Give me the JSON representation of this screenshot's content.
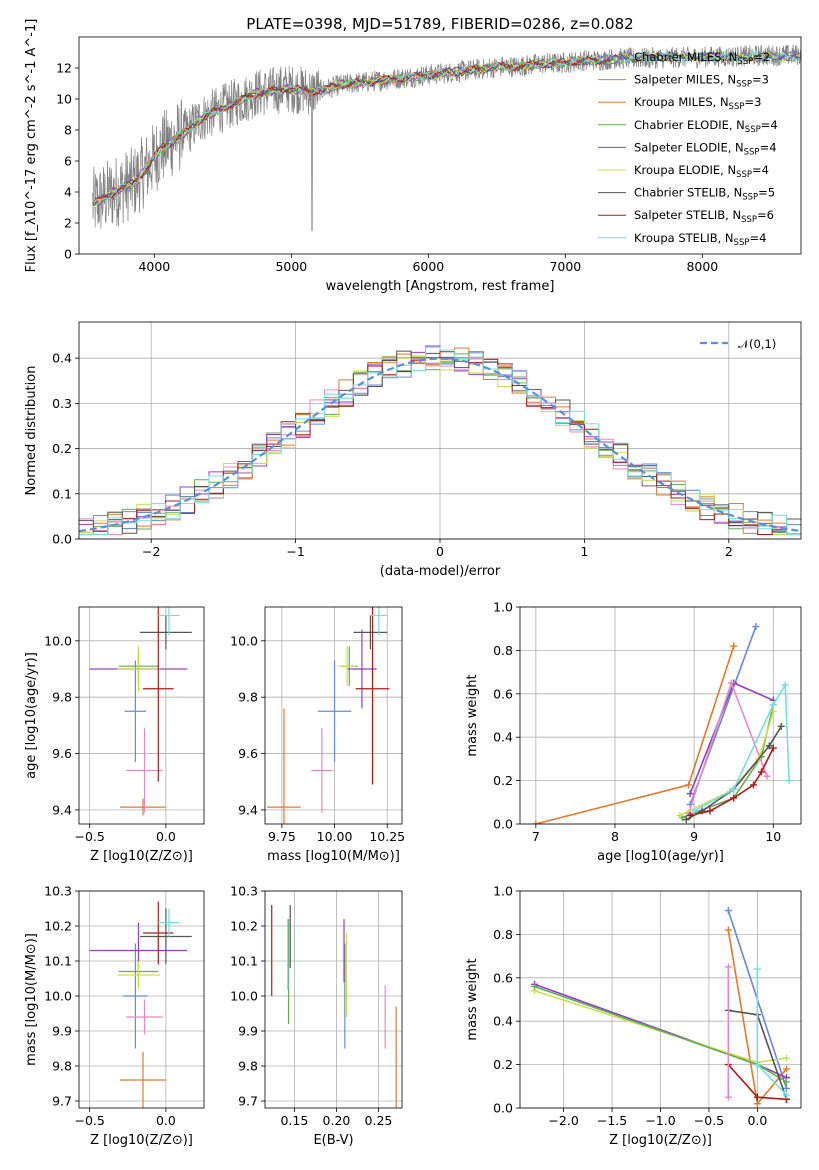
{
  "figure": {
    "title": "PLATE=0398, MJD=51789, FIBERID=0286, z=0.082"
  },
  "colors": {
    "blue": "#6688dd",
    "orange": "#e07a2c",
    "green": "#66aa55",
    "purple": "#8e44c0",
    "pink": "#e58ac4",
    "yellowgreen": "#ccdd55",
    "gray": "#555555",
    "red": "#aa1c1c",
    "cyan": "#77dddd",
    "data_gray": "#808080"
  },
  "chart_data": [
    {
      "id": "spectrum",
      "type": "line",
      "title": "PLATE=0398, MJD=51789, FIBERID=0286, z=0.082",
      "xlabel": "wavelength [Angstrom, rest frame]",
      "ylabel": "Flux [f_λ10^-17 erg cm^-2 s^-1 A^-1]",
      "xlim": [
        3450,
        8720
      ],
      "ylim": [
        0,
        14
      ],
      "xticks": [
        "4000",
        "5000",
        "6000",
        "7000",
        "8000"
      ],
      "yticks": [
        "0",
        "2",
        "4",
        "6",
        "8",
        "10",
        "12"
      ],
      "grid": false,
      "legend_position": "right",
      "legend": [
        {
          "label": "Chabrier MILES, N_SSP=2",
          "color": "#6688dd"
        },
        {
          "label": "Salpeter MILES, N_SSP=3",
          "color": "#e07a2c"
        },
        {
          "label": "Kroupa MILES, N_SSP=3",
          "color": "#e07a2c"
        },
        {
          "label": "Chabrier ELODIE, N_SSP=4",
          "color": "#66aa55"
        },
        {
          "label": "Salpeter ELODIE, N_SSP=4",
          "color": "#8e44c0"
        },
        {
          "label": "Kroupa ELODIE, N_SSP=4",
          "color": "#ccdd55"
        },
        {
          "label": "Chabrier STELIB, N_SSP=5",
          "color": "#555555"
        },
        {
          "label": "Salpeter STELIB, N_SSP=6",
          "color": "#aa1c1c"
        },
        {
          "label": "Kroupa STELIB, N_SSP=4",
          "color": "#77dddd"
        }
      ],
      "model_curve": {
        "x": [
          3550,
          3650,
          3750,
          3850,
          3950,
          4050,
          4150,
          4250,
          4350,
          4450,
          4550,
          4650,
          4750,
          4850,
          4950,
          5050,
          5150,
          5250,
          5350,
          5450,
          5550,
          5650,
          5750,
          5850,
          5950,
          6050,
          6150,
          6250,
          6350,
          6450,
          6550,
          6650,
          6750,
          6850,
          6950,
          7050,
          7150,
          7250,
          7350,
          7450
        ],
        "y": [
          3.2,
          3.7,
          4.2,
          4.6,
          5.6,
          6.8,
          7.4,
          8.0,
          8.8,
          9.2,
          9.6,
          10.0,
          10.4,
          10.5,
          10.7,
          10.6,
          10.5,
          10.6,
          10.9,
          11.0,
          11.1,
          11.2,
          11.3,
          11.4,
          11.5,
          11.6,
          11.7,
          11.8,
          11.9,
          12.0,
          12.1,
          12.1,
          12.2,
          12.3,
          12.3,
          12.4,
          12.5,
          12.5,
          12.6,
          12.6
        ]
      },
      "data_curve_xrange": [
        3500,
        8720
      ]
    },
    {
      "id": "residuals",
      "type": "line",
      "xlabel": "(data-model)/error",
      "ylabel": "Normed distribution",
      "xlim": [
        -2.5,
        2.5
      ],
      "ylim": [
        0,
        0.48
      ],
      "xticks": [
        "−2",
        "−1",
        "0",
        "1",
        "2"
      ],
      "yticks": [
        "0.0",
        "0.1",
        "0.2",
        "0.3",
        "0.4"
      ],
      "grid": true,
      "legend_position": "top-right",
      "reference": {
        "label": "𝒩(0,1)",
        "mu": 0,
        "sigma": 1,
        "color": "#5b8fd8"
      },
      "bin_width": 0.1
    },
    {
      "id": "age_vs_Z",
      "type": "scatter",
      "xlabel": "Z [log10(Z/Z⊙)]",
      "ylabel": "age [log10(age/yr)]",
      "xlim": [
        -0.57,
        0.25
      ],
      "ylim": [
        9.35,
        10.12
      ],
      "xticks": [
        "−0.5",
        "0.0"
      ],
      "yticks": [
        "9.4",
        "9.6",
        "9.8",
        "10.0"
      ],
      "grid": true,
      "points": [
        {
          "x": -0.2,
          "xerr": 0.07,
          "y": 9.75,
          "yerr": 0.18,
          "color": "#6688dd"
        },
        {
          "x": -0.15,
          "xerr": 0.15,
          "y": 9.41,
          "yerr": 0.03,
          "color": "#e07a2c"
        },
        {
          "x": -0.18,
          "xerr": 0.13,
          "y": 9.91,
          "yerr": 0.06,
          "color": "#66aa55"
        },
        {
          "x": -0.18,
          "xerr": 0.32,
          "y": 9.9,
          "yerr": 0.06,
          "color": "#8e44c0"
        },
        {
          "x": -0.14,
          "xerr": 0.12,
          "y": 9.54,
          "yerr": 0.15,
          "color": "#e58ac4"
        },
        {
          "x": -0.18,
          "xerr": 0.14,
          "y": 9.9,
          "yerr": 0.08,
          "color": "#ccdd55"
        },
        {
          "x": 0.0,
          "xerr": 0.17,
          "y": 10.03,
          "yerr": 0.06,
          "color": "#555555"
        },
        {
          "x": -0.05,
          "xerr": 0.1,
          "y": 9.83,
          "yerr": 0.33,
          "color": "#aa1c1c"
        },
        {
          "x": 0.02,
          "xerr": 0.07,
          "y": 10.09,
          "yerr": 0.07,
          "color": "#77dddd"
        }
      ]
    },
    {
      "id": "age_vs_mass",
      "type": "scatter",
      "xlabel": "mass [log10(M/M⊙)]",
      "xlim": [
        9.67,
        10.32
      ],
      "ylim": [
        9.35,
        10.12
      ],
      "xticks": [
        "9.75",
        "10.00",
        "10.25"
      ],
      "yticks": [
        "9.4",
        "9.6",
        "9.8",
        "10.0"
      ],
      "grid": true,
      "points": [
        {
          "x": 10.0,
          "xerr": 0.08,
          "y": 9.75,
          "yerr": 0.18,
          "color": "#6688dd"
        },
        {
          "x": 9.76,
          "xerr": 0.08,
          "y": 9.41,
          "yerr": 0.35,
          "color": "#e07a2c"
        },
        {
          "x": 10.07,
          "xerr": 0.04,
          "y": 9.91,
          "yerr": 0.07,
          "color": "#66aa55"
        },
        {
          "x": 10.13,
          "xerr": 0.07,
          "y": 9.9,
          "yerr": 0.14,
          "color": "#8e44c0"
        },
        {
          "x": 9.94,
          "xerr": 0.05,
          "y": 9.54,
          "yerr": 0.15,
          "color": "#e58ac4"
        },
        {
          "x": 10.06,
          "xerr": 0.04,
          "y": 9.91,
          "yerr": 0.07,
          "color": "#ccdd55"
        },
        {
          "x": 10.17,
          "xerr": 0.08,
          "y": 10.03,
          "yerr": 0.06,
          "color": "#555555"
        },
        {
          "x": 10.18,
          "xerr": 0.08,
          "y": 9.83,
          "yerr": 0.34,
          "color": "#aa1c1c"
        },
        {
          "x": 10.21,
          "xerr": 0.04,
          "y": 10.09,
          "yerr": 0.07,
          "color": "#77dddd"
        }
      ]
    },
    {
      "id": "weight_vs_age",
      "type": "line",
      "xlabel": "age [log10(age/yr)]",
      "ylabel": "mass weight",
      "xlim": [
        6.8,
        10.35
      ],
      "ylim": [
        0,
        1.0
      ],
      "xticks": [
        "7",
        "8",
        "9",
        "10"
      ],
      "yticks": [
        "0.0",
        "0.2",
        "0.4",
        "0.6",
        "0.8",
        "1.0"
      ],
      "grid": true,
      "series": [
        {
          "color": "#6688dd",
          "x": [
            8.95,
            9.78
          ],
          "y": [
            0.09,
            0.91
          ]
        },
        {
          "color": "#e07a2c",
          "x": [
            7.0,
            8.93,
            9.5
          ],
          "y": [
            0.0,
            0.18,
            0.82
          ]
        },
        {
          "color": "#8e44c0",
          "x": [
            8.95,
            9.5,
            10.0
          ],
          "y": [
            0.14,
            0.65,
            0.57
          ]
        },
        {
          "color": "#e58ac4",
          "x": [
            8.93,
            9.47,
            9.92
          ],
          "y": [
            0.05,
            0.65,
            0.22
          ]
        },
        {
          "color": "#66aa55",
          "x": [
            8.85,
            9.5,
            9.85,
            10.0
          ],
          "y": [
            0.03,
            0.12,
            0.31,
            0.55
          ]
        },
        {
          "color": "#ccdd55",
          "x": [
            8.82,
            9.45,
            9.82,
            10.0
          ],
          "y": [
            0.04,
            0.15,
            0.3,
            0.52
          ]
        },
        {
          "color": "#555555",
          "x": [
            8.9,
            9.1,
            9.5,
            9.95,
            10.1
          ],
          "y": [
            0.02,
            0.06,
            0.16,
            0.36,
            0.45
          ]
        },
        {
          "color": "#aa1c1c",
          "x": [
            8.95,
            9.2,
            9.5,
            9.75,
            9.85,
            10.0
          ],
          "y": [
            0.04,
            0.06,
            0.12,
            0.18,
            0.24,
            0.35
          ]
        },
        {
          "color": "#77dddd",
          "x": [
            9.0,
            9.5,
            10.0,
            10.15,
            10.2
          ],
          "y": [
            0.06,
            0.16,
            0.55,
            0.64,
            0.2
          ]
        }
      ]
    },
    {
      "id": "mass_vs_Z",
      "type": "scatter",
      "xlabel": "Z [log10(Z/Z⊙)]",
      "ylabel": "mass [log10(M/M⊙)]",
      "xlim": [
        -0.57,
        0.25
      ],
      "ylim": [
        9.68,
        10.3
      ],
      "xticks": [
        "−0.5",
        "0.0"
      ],
      "yticks": [
        "9.7",
        "9.8",
        "9.9",
        "10.0",
        "10.1",
        "10.2",
        "10.3"
      ],
      "grid": true,
      "points": [
        {
          "x": -0.2,
          "xerr": 0.08,
          "y": 10.0,
          "yerr": 0.15,
          "color": "#6688dd"
        },
        {
          "x": -0.15,
          "xerr": 0.15,
          "y": 9.76,
          "yerr": 0.08,
          "color": "#e07a2c"
        },
        {
          "x": -0.18,
          "xerr": 0.13,
          "y": 10.07,
          "yerr": 0.04,
          "color": "#66aa55"
        },
        {
          "x": -0.18,
          "xerr": 0.32,
          "y": 10.13,
          "yerr": 0.08,
          "color": "#8e44c0"
        },
        {
          "x": -0.14,
          "xerr": 0.12,
          "y": 9.94,
          "yerr": 0.05,
          "color": "#e58ac4"
        },
        {
          "x": -0.18,
          "xerr": 0.14,
          "y": 10.06,
          "yerr": 0.04,
          "color": "#ccdd55"
        },
        {
          "x": 0.0,
          "xerr": 0.17,
          "y": 10.17,
          "yerr": 0.08,
          "color": "#555555"
        },
        {
          "x": -0.05,
          "xerr": 0.1,
          "y": 10.18,
          "yerr": 0.09,
          "color": "#aa1c1c"
        },
        {
          "x": 0.02,
          "xerr": 0.07,
          "y": 10.21,
          "yerr": 0.04,
          "color": "#77dddd"
        }
      ]
    },
    {
      "id": "mass_vs_EBV",
      "type": "scatter",
      "xlabel": "E(B-V)",
      "xlim": [
        0.115,
        0.278
      ],
      "ylim": [
        9.68,
        10.3
      ],
      "xticks": [
        "0.15",
        "0.20",
        "0.25"
      ],
      "yticks": [
        "9.7",
        "9.8",
        "9.9",
        "10.0",
        "10.1",
        "10.2",
        "10.3"
      ],
      "grid": true,
      "points": [
        {
          "x": 0.21,
          "y": 10.0,
          "yerr": 0.15,
          "color": "#6688dd"
        },
        {
          "x": 0.271,
          "y": 9.76,
          "yerr": 0.21,
          "color": "#e07a2c"
        },
        {
          "x": 0.143,
          "y": 10.07,
          "yerr": 0.15,
          "color": "#66aa55"
        },
        {
          "x": 0.209,
          "y": 10.13,
          "yerr": 0.09,
          "color": "#8e44c0"
        },
        {
          "x": 0.258,
          "y": 9.94,
          "yerr": 0.09,
          "color": "#e58ac4"
        },
        {
          "x": 0.212,
          "y": 10.06,
          "yerr": 0.12,
          "color": "#ccdd55"
        },
        {
          "x": 0.145,
          "y": 10.17,
          "yerr": 0.09,
          "color": "#555555"
        },
        {
          "x": 0.123,
          "y": 10.13,
          "yerr": 0.13,
          "color": "#aa1c1c"
        },
        {
          "x": 0.142,
          "y": 10.12,
          "yerr": 0.1,
          "color": "#77dddd"
        }
      ]
    },
    {
      "id": "weight_vs_Z",
      "type": "line",
      "xlabel": "Z [log10(Z/Z⊙)]",
      "ylabel": "mass weight",
      "xlim": [
        -2.45,
        0.45
      ],
      "ylim": [
        0,
        1.0
      ],
      "xticks": [
        "−2.0",
        "−1.5",
        "−1.0",
        "−0.5",
        "0.0"
      ],
      "yticks": [
        "0.0",
        "0.2",
        "0.4",
        "0.6",
        "0.8",
        "1.0"
      ],
      "grid": true,
      "series": [
        {
          "color": "#6688dd",
          "x": [
            -0.3,
            0.3
          ],
          "y": [
            0.91,
            0.09
          ]
        },
        {
          "color": "#e07a2c",
          "x": [
            -0.3,
            0.0,
            0.3
          ],
          "y": [
            0.82,
            0.02,
            0.18
          ]
        },
        {
          "color": "#8e44c0",
          "x": [
            -2.3,
            0.0,
            0.3
          ],
          "y": [
            0.57,
            0.2,
            0.14
          ]
        },
        {
          "color": "#ccdd55",
          "x": [
            -2.3,
            0.0,
            0.3
          ],
          "y": [
            0.54,
            0.21,
            0.23
          ]
        },
        {
          "color": "#66aa55",
          "x": [
            -2.3,
            0.0,
            0.3
          ],
          "y": [
            0.56,
            0.2,
            0.12
          ]
        },
        {
          "color": "#555555",
          "x": [
            -0.3,
            0.0,
            0.3
          ],
          "y": [
            0.45,
            0.43,
            0.04
          ]
        },
        {
          "color": "#aa1c1c",
          "x": [
            -0.3,
            0.0,
            0.3
          ],
          "y": [
            0.2,
            0.05,
            0.04
          ]
        },
        {
          "color": "#e58ac4",
          "x": [
            -0.3,
            -0.3
          ],
          "y": [
            0.65,
            0.05
          ]
        },
        {
          "color": "#77dddd",
          "x": [
            0.0,
            0.0,
            0.3
          ],
          "y": [
            0.64,
            0.2,
            0.06
          ]
        }
      ]
    }
  ]
}
